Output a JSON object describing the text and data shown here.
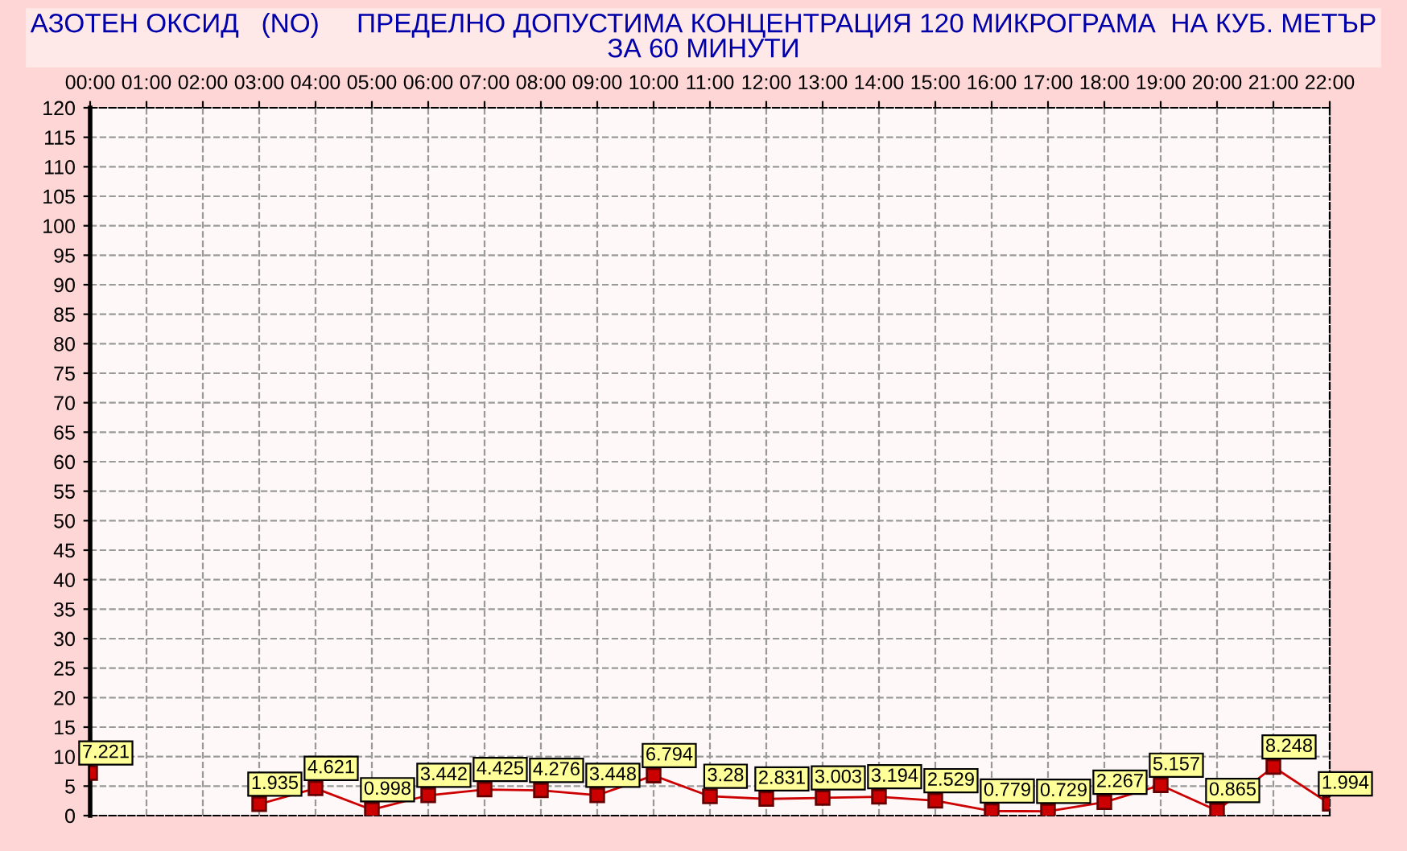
{
  "chart_data": {
    "type": "line",
    "title": "АЗОТЕН ОКСИД   (NO)     ПРЕДЕЛНО ДОПУСТИМА КОНЦЕНТРАЦИЯ 120 МИКРОГРАМА  НА КУБ. МЕТЪР\nЗА 60 МИНУТИ",
    "x": [
      0,
      1,
      2,
      3,
      4,
      5,
      6,
      7,
      8,
      9,
      10,
      11,
      12,
      13,
      14,
      15,
      16,
      17,
      18,
      19,
      20,
      21,
      22
    ],
    "series": [
      {
        "color": "#cc0000",
        "values": [
          7.221,
          null,
          null,
          1.935,
          4.621,
          0.998,
          3.442,
          4.425,
          4.276,
          3.448,
          6.794,
          3.28,
          2.831,
          3.003,
          3.194,
          2.529,
          0.779,
          0.729,
          2.267,
          5.157,
          0.865,
          8.248,
          1.994
        ],
        "value_labels": [
          "7.221",
          null,
          null,
          "1.935",
          "4.621",
          "0.998",
          "3.442",
          "4.425",
          "4.276",
          "3.448",
          "6.794",
          "3.28",
          "2.831",
          "3.003",
          "3.194",
          "2.529",
          "0.779",
          "0.729",
          "2.267",
          "5.157",
          "0.865",
          "8.248",
          "1.994"
        ]
      }
    ],
    "xlim": [
      0,
      22
    ],
    "xticks": [
      {
        "value": 0,
        "label": "00:00"
      },
      {
        "value": 1,
        "label": "01:00"
      },
      {
        "value": 2,
        "label": "02:00"
      },
      {
        "value": 3,
        "label": "03:00"
      },
      {
        "value": 4,
        "label": "04:00"
      },
      {
        "value": 5,
        "label": "05:00"
      },
      {
        "value": 6,
        "label": "06:00"
      },
      {
        "value": 7,
        "label": "07:00"
      },
      {
        "value": 8,
        "label": "08:00"
      },
      {
        "value": 9,
        "label": "09:00"
      },
      {
        "value": 10,
        "label": "10:00"
      },
      {
        "value": 11,
        "label": "11:00"
      },
      {
        "value": 12,
        "label": "12:00"
      },
      {
        "value": 13,
        "label": "13:00"
      },
      {
        "value": 14,
        "label": "14:00"
      },
      {
        "value": 15,
        "label": "15:00"
      },
      {
        "value": 16,
        "label": "16:00"
      },
      {
        "value": 17,
        "label": "17:00"
      },
      {
        "value": 18,
        "label": "18:00"
      },
      {
        "value": 19,
        "label": "19:00"
      },
      {
        "value": 20,
        "label": "20:00"
      },
      {
        "value": 21,
        "label": "21:00"
      },
      {
        "value": 22,
        "label": "22:00"
      }
    ],
    "ylim": [
      0,
      120
    ],
    "yticks": [
      0,
      5,
      10,
      15,
      20,
      25,
      30,
      35,
      40,
      45,
      50,
      55,
      60,
      65,
      70,
      75,
      80,
      85,
      90,
      95,
      100,
      105,
      110,
      115,
      120
    ],
    "grid": true,
    "marker": "square",
    "line_style": "solid"
  }
}
